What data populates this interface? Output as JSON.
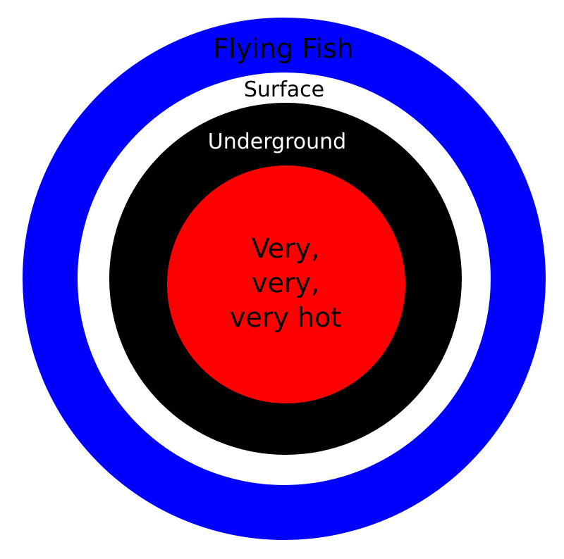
{
  "layers": [
    {
      "key": "flying-fish",
      "label": "Flying Fish",
      "color": "#0000ff",
      "text_color": "#000000"
    },
    {
      "key": "surface",
      "label": "Surface",
      "color": "#ffffff",
      "text_color": "#000000"
    },
    {
      "key": "underground",
      "label": "Underground",
      "color": "#000000",
      "text_color": "#ffffff"
    },
    {
      "key": "core",
      "label_lines": [
        "Very,",
        "very,",
        "very hot"
      ],
      "color": "#ff0000",
      "text_color": "#000000"
    }
  ]
}
